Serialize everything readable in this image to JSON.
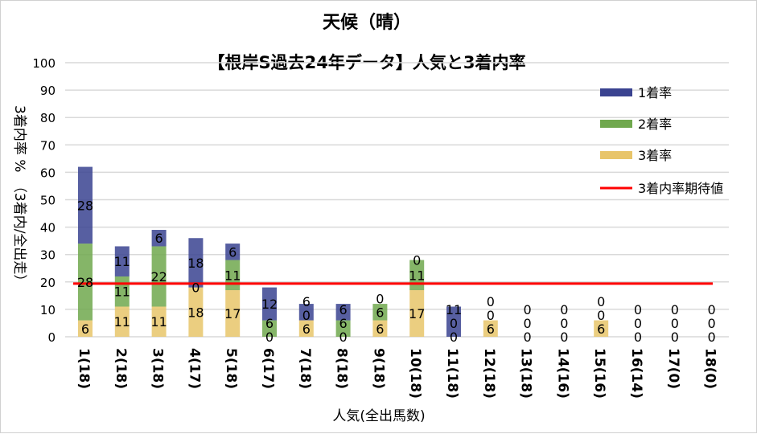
{
  "chart_data": {
    "type": "bar",
    "stacked": true,
    "title": "天候（晴）",
    "subtitle": "【根岸S過去24年データ】人気と3着内率",
    "xlabel": "人気(全出馬数)",
    "ylabel": "3着内率 %　（3着内/全出走）",
    "ylim": [
      0,
      100
    ],
    "yticks": [
      0,
      10,
      20,
      30,
      40,
      50,
      60,
      70,
      80,
      90,
      100
    ],
    "grid": true,
    "legend_position": "top-right",
    "categories": [
      "1(18)",
      "2(18)",
      "3(18)",
      "4(17)",
      "5(18)",
      "6(17)",
      "7(18)",
      "8(18)",
      "9(18)",
      "10(18)",
      "11(18)",
      "12(18)",
      "13(18)",
      "14(16)",
      "15(16)",
      "16(14)",
      "17(0)",
      "18(0)"
    ],
    "series": [
      {
        "name": "3着率",
        "color": "#e8c56a",
        "values": [
          6,
          11,
          11,
          18,
          17,
          0,
          6,
          0,
          6,
          17,
          0,
          6,
          0,
          0,
          6,
          0,
          0,
          0
        ]
      },
      {
        "name": "2着率",
        "color": "#70a84e",
        "values": [
          28,
          11,
          22,
          0,
          11,
          6,
          0,
          6,
          6,
          11,
          0,
          0,
          0,
          0,
          0,
          0,
          0,
          0
        ]
      },
      {
        "name": "1着率",
        "color": "#3a4390",
        "values": [
          28,
          11,
          6,
          18,
          6,
          12,
          6,
          6,
          0,
          0,
          11,
          0,
          0,
          0,
          0,
          0,
          0,
          0
        ]
      }
    ],
    "reference_line": {
      "name": "3着内率期待値",
      "value": 19.4,
      "color": "#ff0000"
    }
  }
}
